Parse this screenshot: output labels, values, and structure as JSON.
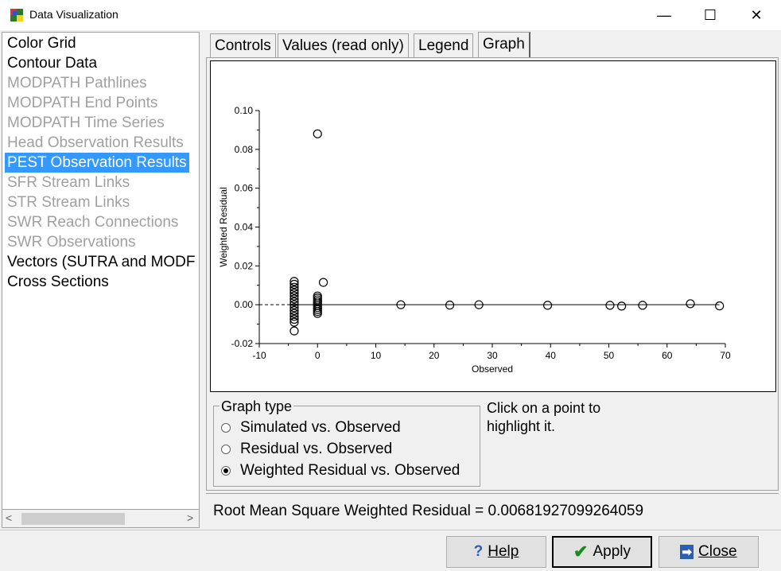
{
  "window": {
    "title": "Data Visualization",
    "minimize_glyph": "—",
    "maximize_glyph": "☐",
    "close_glyph": "✕"
  },
  "sidebar": {
    "items": [
      {
        "label": "Color Grid",
        "state": "enabled"
      },
      {
        "label": "Contour Data",
        "state": "enabled"
      },
      {
        "label": "MODPATH Pathlines",
        "state": "disabled"
      },
      {
        "label": "MODPATH End Points",
        "state": "disabled"
      },
      {
        "label": "MODPATH Time Series",
        "state": "disabled"
      },
      {
        "label": "Head Observation Results",
        "state": "disabled"
      },
      {
        "label": "PEST Observation Results",
        "state": "selected"
      },
      {
        "label": "SFR Stream Links",
        "state": "disabled"
      },
      {
        "label": "STR Stream Links",
        "state": "disabled"
      },
      {
        "label": "SWR Reach Connections",
        "state": "disabled"
      },
      {
        "label": "SWR Observations",
        "state": "disabled"
      },
      {
        "label": "Vectors (SUTRA and MODF",
        "state": "enabled"
      },
      {
        "label": "Cross Sections",
        "state": "enabled"
      }
    ],
    "scroll_left": "<",
    "scroll_right": ">"
  },
  "tabs": [
    {
      "label": "Controls"
    },
    {
      "label": "Values (read only)"
    },
    {
      "label": "Legend"
    },
    {
      "label": "Graph",
      "active": true
    }
  ],
  "graph_type": {
    "legend": "Graph type",
    "options": [
      {
        "label": "Simulated vs. Observed",
        "checked": false
      },
      {
        "label": "Residual vs. Observed",
        "checked": false
      },
      {
        "label": "Weighted Residual vs. Observed",
        "checked": true
      }
    ]
  },
  "hint": "Click on a point to highlight it.",
  "rms": "Root Mean Square Weighted Residual = 0.00681927099264059",
  "buttons": {
    "help": {
      "icon": "?",
      "label": "Help"
    },
    "apply": {
      "icon": "✔",
      "label": "Apply"
    },
    "close": {
      "icon": "➡",
      "label": "Close"
    }
  },
  "chart_data": {
    "type": "scatter",
    "xlabel": "Observed",
    "ylabel": "Weighted Residual",
    "xlim": [
      -10,
      70
    ],
    "ylim": [
      -0.02,
      0.1
    ],
    "xticks": [
      -10,
      0,
      10,
      20,
      30,
      40,
      50,
      60,
      70
    ],
    "yticks": [
      -0.02,
      0.0,
      0.02,
      0.04,
      0.06,
      0.08,
      0.1
    ],
    "ytick_labels": [
      "-0.02",
      "0.00",
      "0.02",
      "0.04",
      "0.06",
      "0.08",
      "0.10"
    ],
    "zero_line": {
      "y": 0,
      "dashed_from": -10,
      "dashed_to": -4,
      "solid_from": -4,
      "solid_to": 69
    },
    "points": [
      {
        "x": 0,
        "y": 0.088
      },
      {
        "x": 1,
        "y": 0.0115
      },
      {
        "x": -4,
        "y": 0.012
      },
      {
        "x": -4,
        "y": 0.0105
      },
      {
        "x": -4,
        "y": 0.009
      },
      {
        "x": -4,
        "y": 0.0075
      },
      {
        "x": -4,
        "y": 0.006
      },
      {
        "x": -4,
        "y": 0.0045
      },
      {
        "x": -4,
        "y": 0.003
      },
      {
        "x": -4,
        "y": 0.0015
      },
      {
        "x": -4,
        "y": 0.0
      },
      {
        "x": -4,
        "y": -0.0015
      },
      {
        "x": -4,
        "y": -0.003
      },
      {
        "x": -4,
        "y": -0.0045
      },
      {
        "x": -4,
        "y": -0.006
      },
      {
        "x": -4,
        "y": -0.0075
      },
      {
        "x": -4,
        "y": -0.009
      },
      {
        "x": -4,
        "y": -0.0135
      },
      {
        "x": 0,
        "y": 0.0045
      },
      {
        "x": 0,
        "y": 0.0035
      },
      {
        "x": 0,
        "y": 0.0025
      },
      {
        "x": 0,
        "y": 0.0015
      },
      {
        "x": 0,
        "y": 0.0005
      },
      {
        "x": 0,
        "y": -0.0005
      },
      {
        "x": 0,
        "y": -0.0015
      },
      {
        "x": 0,
        "y": -0.0025
      },
      {
        "x": 0,
        "y": -0.0035
      },
      {
        "x": 0,
        "y": -0.0045
      },
      {
        "x": 14.3,
        "y": 0.0
      },
      {
        "x": 22.7,
        "y": -0.0002
      },
      {
        "x": 27.7,
        "y": 0.0
      },
      {
        "x": 39.5,
        "y": -0.0003
      },
      {
        "x": 50.2,
        "y": -0.0003
      },
      {
        "x": 52.2,
        "y": -0.0007
      },
      {
        "x": 55.8,
        "y": -0.0003
      },
      {
        "x": 64.0,
        "y": 0.0005
      },
      {
        "x": 69.0,
        "y": -0.0006
      }
    ]
  }
}
